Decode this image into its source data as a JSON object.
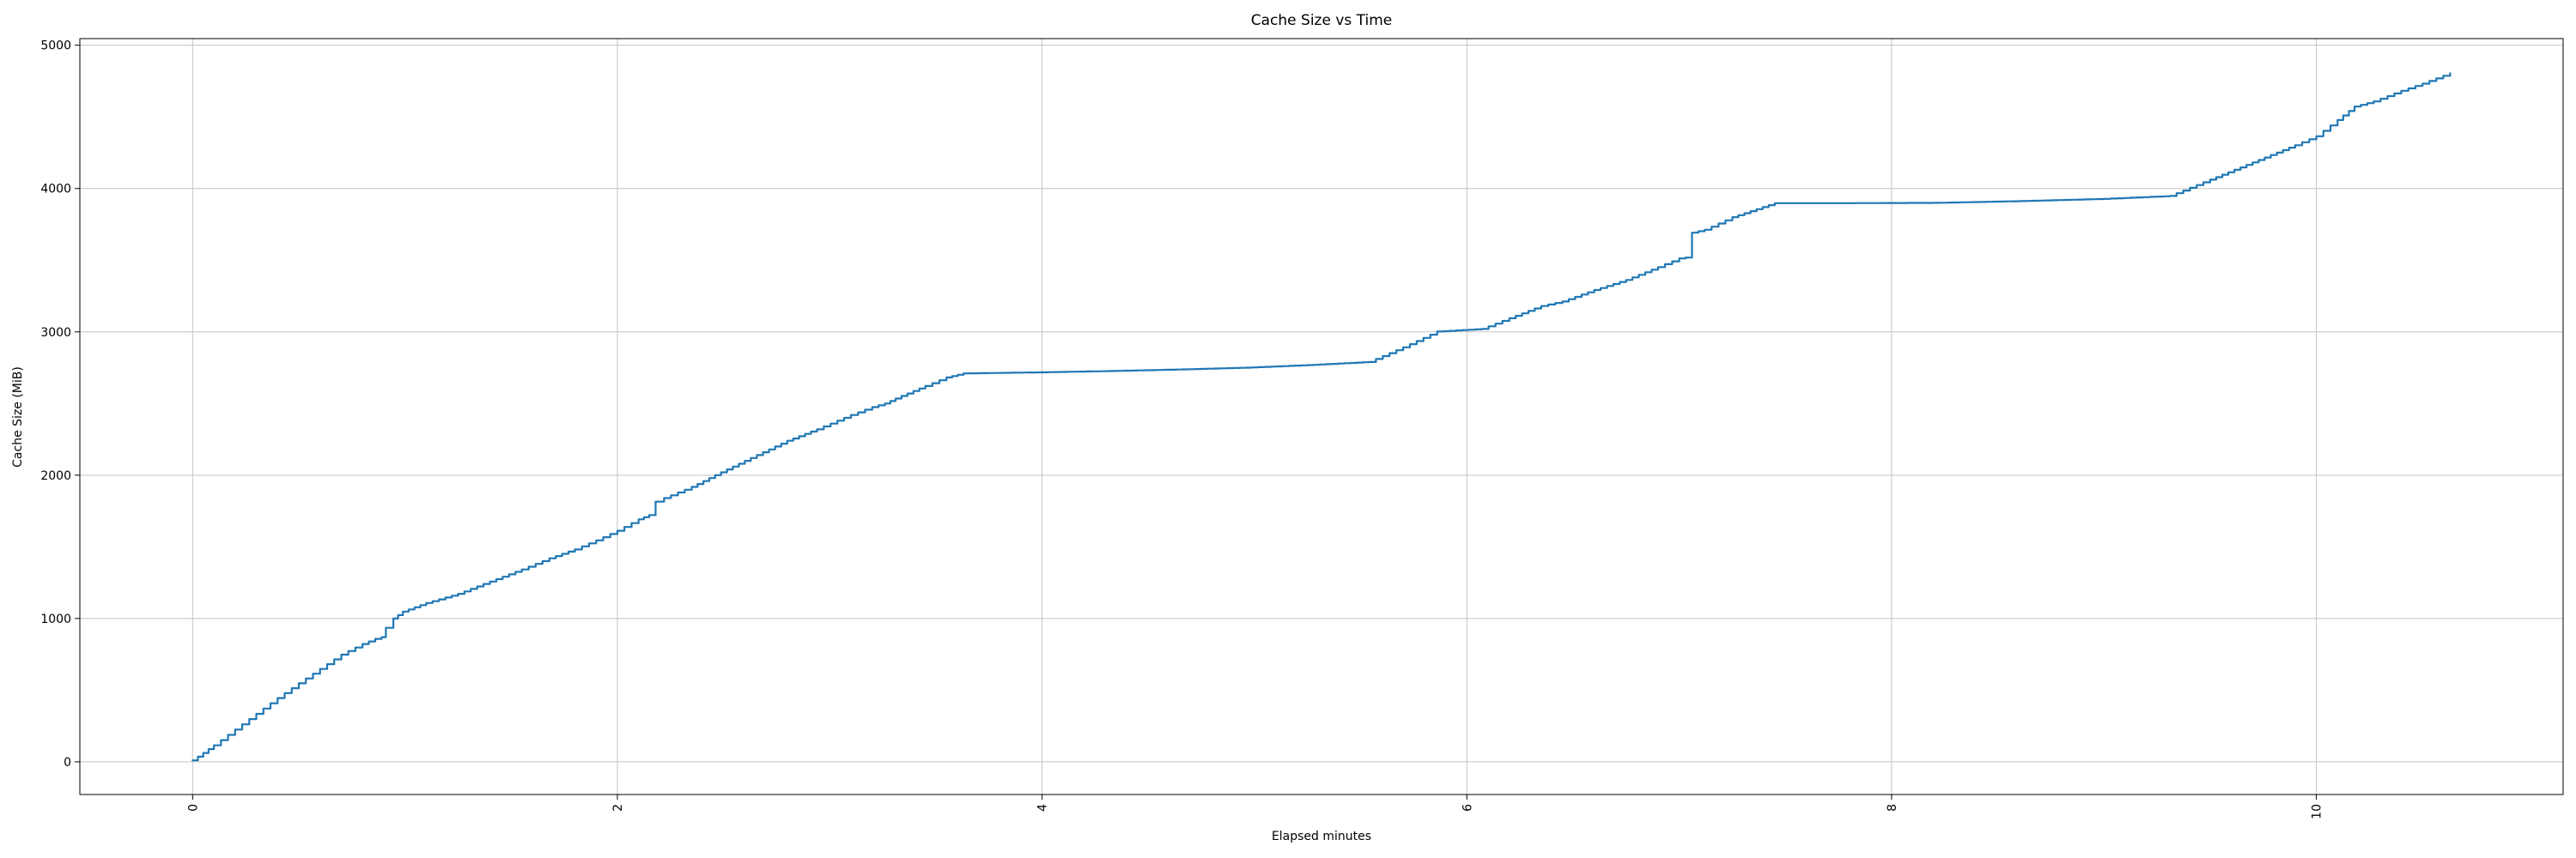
{
  "chart_data": {
    "type": "line",
    "title": "Cache Size vs Time",
    "xlabel": "Elapsed minutes",
    "ylabel": "Cache Size (MiB)",
    "x_ticks": [
      0,
      2,
      4,
      6,
      8,
      10
    ],
    "y_ticks": [
      0,
      1000,
      2000,
      3000,
      4000,
      5000
    ],
    "xlim": [
      -0.531,
      11.162
    ],
    "ylim": [
      -228,
      5046
    ],
    "grid": true,
    "legend": "none",
    "x_tick_rotation_deg": 90,
    "line_color": "#1f77b4",
    "grid_color": "#c3c3c3",
    "spine_color": "#000000",
    "background_color": "#ffffff",
    "step_rendering_minutes": 0.03,
    "series": [
      {
        "name": "cache-size-mib",
        "points": [
          [
            0,
            10
          ],
          [
            0.05,
            62
          ],
          [
            0.1,
            115
          ],
          [
            0.2,
            225
          ],
          [
            0.3,
            335
          ],
          [
            0.4,
            445
          ],
          [
            0.5,
            548
          ],
          [
            0.6,
            648
          ],
          [
            0.7,
            748
          ],
          [
            0.8,
            822
          ],
          [
            0.86,
            858
          ],
          [
            0.89,
            870
          ],
          [
            0.91,
            935
          ],
          [
            0.945,
            1000
          ],
          [
            0.99,
            1048
          ],
          [
            1.1,
            1108
          ],
          [
            1.25,
            1172
          ],
          [
            1.4,
            1258
          ],
          [
            1.55,
            1342
          ],
          [
            1.68,
            1420
          ],
          [
            1.8,
            1482
          ],
          [
            1.9,
            1545
          ],
          [
            2.0,
            1612
          ],
          [
            2.1,
            1692
          ],
          [
            2.15,
            1722
          ],
          [
            2.18,
            1815
          ],
          [
            2.22,
            1840
          ],
          [
            2.35,
            1918
          ],
          [
            2.46,
            2000
          ],
          [
            2.6,
            2100
          ],
          [
            2.8,
            2240
          ],
          [
            2.94,
            2320
          ],
          [
            3.1,
            2420
          ],
          [
            3.2,
            2475
          ],
          [
            3.26,
            2500
          ],
          [
            3.31,
            2535
          ],
          [
            3.45,
            2622
          ],
          [
            3.55,
            2682
          ],
          [
            3.63,
            2710
          ],
          [
            3.8,
            2714
          ],
          [
            4.0,
            2718
          ],
          [
            4.3,
            2726
          ],
          [
            4.6,
            2736
          ],
          [
            4.96,
            2750
          ],
          [
            5.25,
            2768
          ],
          [
            5.54,
            2790
          ],
          [
            5.7,
            2892
          ],
          [
            5.86,
            3002
          ],
          [
            5.95,
            3010
          ],
          [
            6.07,
            3020
          ],
          [
            6.2,
            3095
          ],
          [
            6.35,
            3180
          ],
          [
            6.45,
            3212
          ],
          [
            6.6,
            3292
          ],
          [
            6.75,
            3362
          ],
          [
            6.9,
            3452
          ],
          [
            7.0,
            3512
          ],
          [
            7.03,
            3518
          ],
          [
            7.06,
            3692
          ],
          [
            7.12,
            3712
          ],
          [
            7.25,
            3800
          ],
          [
            7.45,
            3898
          ],
          [
            7.8,
            3898
          ],
          [
            8.2,
            3900
          ],
          [
            8.6,
            3912
          ],
          [
            9.0,
            3928
          ],
          [
            9.31,
            3948
          ],
          [
            9.5,
            4062
          ],
          [
            9.7,
            4182
          ],
          [
            9.9,
            4302
          ],
          [
            10.0,
            4365
          ],
          [
            10.1,
            4478
          ],
          [
            10.18,
            4572
          ],
          [
            10.27,
            4608
          ],
          [
            10.4,
            4682
          ],
          [
            10.5,
            4732
          ],
          [
            10.63,
            4805
          ]
        ]
      }
    ]
  }
}
